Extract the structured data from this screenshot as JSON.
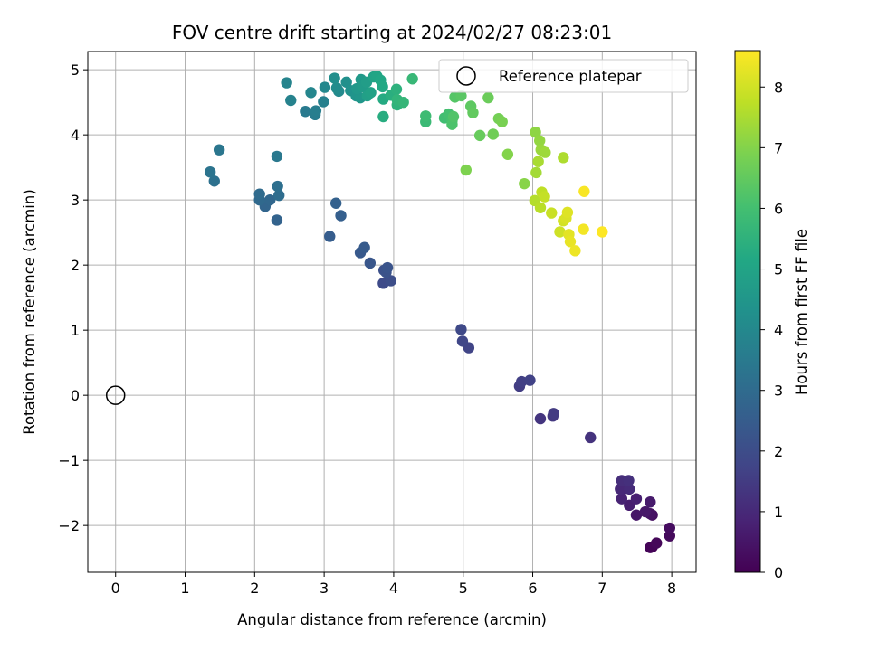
{
  "chart_data": {
    "type": "scatter",
    "title": "FOV centre drift starting at 2024/02/27 08:23:01",
    "xlabel": "Angular distance from reference (arcmin)",
    "ylabel": "Rotation from reference (arcmin)",
    "xlim": [
      -0.4,
      8.35
    ],
    "ylim": [
      -2.72,
      5.28
    ],
    "xticks": [
      "0",
      "1",
      "2",
      "3",
      "4",
      "5",
      "6",
      "7",
      "8"
    ],
    "yticks": [
      "−2",
      "−1",
      "0",
      "1",
      "2",
      "3",
      "4",
      "5"
    ],
    "grid": true,
    "legend": {
      "location": "upper right",
      "entries": [
        "Reference platepar"
      ]
    },
    "colorbar": {
      "label": "Hours from first FF file",
      "colormap": "viridis",
      "range": [
        0,
        8.6
      ],
      "ticks": [
        "0",
        "1",
        "2",
        "3",
        "4",
        "5",
        "6",
        "7",
        "8"
      ]
    },
    "reference_point": {
      "x": 0,
      "y": 0
    },
    "series": [
      {
        "points": [
          [
            7.72,
            -2.33
          ],
          [
            7.69,
            -2.34
          ],
          [
            7.78,
            -2.27
          ],
          [
            7.97,
            -2.16
          ],
          [
            7.97,
            -2.04
          ],
          [
            7.72,
            -1.84
          ],
          [
            7.69,
            -1.82
          ],
          [
            7.49,
            -1.84
          ],
          [
            7.62,
            -1.79
          ],
          [
            7.69,
            -1.64
          ],
          [
            7.39,
            -1.69
          ],
          [
            7.49,
            -1.59
          ],
          [
            7.28,
            -1.59
          ],
          [
            7.31,
            -1.44
          ],
          [
            7.26,
            -1.44
          ],
          [
            7.39,
            -1.44
          ],
          [
            7.28,
            -1.31
          ],
          [
            7.38,
            -1.31
          ],
          [
            6.83,
            -0.65
          ],
          [
            6.11,
            -0.36
          ],
          [
            6.29,
            -0.32
          ],
          [
            6.3,
            -0.28
          ],
          [
            5.81,
            0.14
          ],
          [
            5.84,
            0.21
          ],
          [
            5.96,
            0.23
          ],
          [
            5.08,
            0.73
          ],
          [
            4.99,
            0.83
          ],
          [
            4.97,
            1.01
          ],
          [
            3.85,
            1.72
          ],
          [
            3.96,
            1.76
          ],
          [
            3.86,
            1.92
          ],
          [
            3.89,
            1.89
          ],
          [
            3.91,
            1.96
          ],
          [
            3.66,
            2.03
          ],
          [
            3.52,
            2.19
          ],
          [
            3.58,
            2.27
          ],
          [
            3.08,
            2.44
          ],
          [
            3.24,
            2.76
          ],
          [
            3.17,
            2.95
          ],
          [
            2.32,
            2.69
          ],
          [
            2.15,
            2.9
          ],
          [
            2.22,
            3.0
          ],
          [
            2.07,
            3.0
          ],
          [
            2.07,
            3.09
          ],
          [
            2.35,
            3.07
          ],
          [
            2.33,
            3.21
          ],
          [
            1.42,
            3.29
          ],
          [
            1.36,
            3.43
          ],
          [
            1.49,
            3.77
          ],
          [
            2.32,
            3.67
          ],
          [
            2.73,
            4.36
          ],
          [
            2.87,
            4.31
          ],
          [
            2.88,
            4.37
          ],
          [
            2.99,
            4.51
          ],
          [
            2.52,
            4.53
          ],
          [
            2.46,
            4.8
          ],
          [
            2.81,
            4.65
          ],
          [
            3.01,
            4.73
          ],
          [
            3.21,
            4.67
          ],
          [
            3.18,
            4.72
          ],
          [
            3.15,
            4.87
          ],
          [
            3.32,
            4.81
          ],
          [
            3.38,
            4.68
          ],
          [
            3.46,
            4.6
          ],
          [
            3.52,
            4.57
          ],
          [
            3.47,
            4.71
          ],
          [
            3.53,
            4.85
          ],
          [
            3.55,
            4.74
          ],
          [
            3.61,
            4.81
          ],
          [
            3.62,
            4.6
          ],
          [
            3.67,
            4.65
          ],
          [
            3.71,
            4.89
          ],
          [
            3.76,
            4.9
          ],
          [
            3.81,
            4.84
          ],
          [
            3.84,
            4.74
          ],
          [
            3.85,
            4.55
          ],
          [
            3.85,
            4.28
          ],
          [
            3.96,
            4.61
          ],
          [
            4.04,
            4.7
          ],
          [
            4.05,
            4.46
          ],
          [
            4.05,
            4.54
          ],
          [
            4.14,
            4.5
          ],
          [
            4.27,
            4.86
          ],
          [
            4.46,
            4.2
          ],
          [
            4.46,
            4.29
          ],
          [
            4.73,
            4.26
          ],
          [
            4.79,
            4.32
          ],
          [
            4.84,
            4.22
          ],
          [
            4.84,
            4.16
          ],
          [
            4.86,
            4.28
          ],
          [
            4.88,
            4.58
          ],
          [
            4.97,
            4.6
          ],
          [
            5.11,
            4.44
          ],
          [
            5.14,
            4.34
          ],
          [
            5.24,
            3.99
          ],
          [
            5.36,
            4.57
          ],
          [
            5.43,
            4.01
          ],
          [
            5.51,
            4.25
          ],
          [
            5.56,
            4.2
          ],
          [
            5.04,
            3.46
          ],
          [
            5.64,
            3.7
          ],
          [
            5.88,
            3.25
          ],
          [
            6.04,
            4.04
          ],
          [
            6.1,
            3.91
          ],
          [
            6.12,
            3.77
          ],
          [
            6.18,
            3.73
          ],
          [
            6.05,
            3.42
          ],
          [
            6.08,
            3.59
          ],
          [
            6.44,
            3.65
          ],
          [
            6.03,
            2.99
          ],
          [
            6.11,
            2.88
          ],
          [
            6.13,
            3.12
          ],
          [
            6.17,
            3.05
          ],
          [
            6.27,
            2.8
          ],
          [
            6.39,
            2.51
          ],
          [
            6.44,
            2.68
          ],
          [
            6.48,
            2.72
          ],
          [
            6.5,
            2.81
          ],
          [
            6.52,
            2.47
          ],
          [
            6.54,
            2.36
          ],
          [
            6.61,
            2.22
          ],
          [
            6.73,
            2.55
          ],
          [
            6.74,
            3.13
          ],
          [
            7.0,
            2.51
          ]
        ]
      }
    ]
  }
}
